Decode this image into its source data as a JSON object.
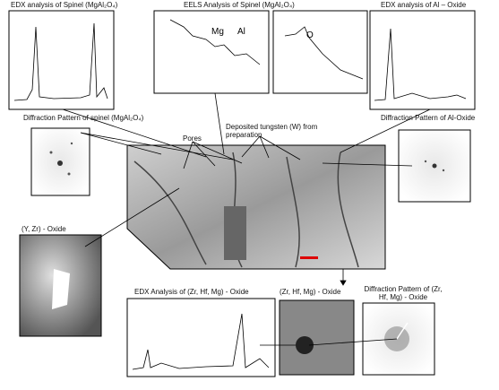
{
  "labels": {
    "edx_spinel": "EDX analysis of Spinel (MgAl₂O₄)",
    "eels_spinel": "EELS Analysis of Spinel (MgAl₂O₄)",
    "edx_al_oxide": "EDX analysis of Al – Oxide",
    "diff_spinel": "Diffraction Pattern of spinel (MgAl₂O₄)",
    "pores": "Pores",
    "tungsten": "Deposited tungsten (W) from preparation",
    "diff_al_oxide": "Diffraction Pattern of Al-Oxide",
    "y_zr_oxide": "(Y, Zr) - Oxide",
    "edx_zr_hf_mg": "EDX Analysis of (Zr, Hf, Mg) - Oxide",
    "zr_hf_mg_oxide": "(Zr, Hf, Mg) - Oxide",
    "diff_zr_hf_mg": "Diffraction Pattern of (Zr, Hf, Mg) - Oxide"
  },
  "eels_peaks": {
    "mg": "Mg",
    "al": "Al",
    "o": "O"
  }
}
